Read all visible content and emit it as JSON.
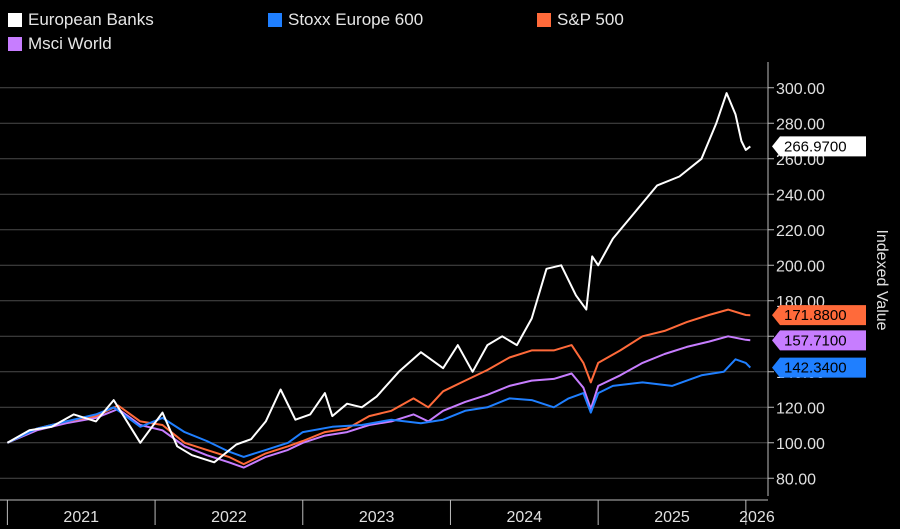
{
  "chart_data": {
    "type": "line",
    "ylabel": "Indexed Value",
    "ylim": [
      70,
      310
    ],
    "yticks": [
      "80.00",
      "100.00",
      "120.00",
      "140.00",
      "160.00",
      "180.00",
      "200.00",
      "220.00",
      "240.00",
      "260.00",
      "280.00",
      "300.00"
    ],
    "xlim": [
      2020.95,
      2026.15
    ],
    "xticks": [
      "2021",
      "2022",
      "2023",
      "2024",
      "2025",
      "2026"
    ],
    "series": [
      {
        "name": "European Banks",
        "color": "#ffffff",
        "last_label": "266.9700",
        "x": [
          2021.0,
          2021.15,
          2021.3,
          2021.45,
          2021.6,
          2021.72,
          2021.9,
          2022.05,
          2022.15,
          2022.25,
          2022.4,
          2022.55,
          2022.65,
          2022.75,
          2022.85,
          2022.95,
          2023.05,
          2023.15,
          2023.2,
          2023.3,
          2023.4,
          2023.5,
          2023.65,
          2023.8,
          2023.95,
          2024.05,
          2024.15,
          2024.25,
          2024.35,
          2024.45,
          2024.55,
          2024.65,
          2024.75,
          2024.85,
          2024.92,
          2024.96,
          2025.0,
          2025.1,
          2025.25,
          2025.4,
          2025.55,
          2025.7,
          2025.8,
          2025.87,
          2025.93,
          2025.97,
          2026.0,
          2026.03
        ],
        "values": [
          100,
          107,
          109,
          116,
          112,
          124,
          100,
          117,
          98,
          93,
          89,
          99,
          102,
          112,
          130,
          113,
          116,
          128,
          115,
          122,
          120,
          126,
          140,
          151,
          142,
          155,
          140,
          155,
          160,
          155,
          170,
          198,
          200,
          183,
          175,
          205,
          200,
          215,
          230,
          245,
          250,
          260,
          280,
          297,
          285,
          270,
          265,
          266.97
        ]
      },
      {
        "name": "Stoxx Europe 600",
        "color": "#1f7fff",
        "last_label": "142.3400",
        "x": [
          2021.0,
          2021.2,
          2021.4,
          2021.6,
          2021.72,
          2021.9,
          2022.05,
          2022.2,
          2022.35,
          2022.5,
          2022.6,
          2022.75,
          2022.9,
          2023.0,
          2023.2,
          2023.4,
          2023.6,
          2023.8,
          2023.95,
          2024.1,
          2024.25,
          2024.4,
          2024.55,
          2024.7,
          2024.8,
          2024.9,
          2024.95,
          2025.0,
          2025.1,
          2025.3,
          2025.5,
          2025.7,
          2025.85,
          2025.93,
          2026.0,
          2026.03
        ],
        "values": [
          100,
          108,
          112,
          116,
          120,
          109,
          114,
          106,
          101,
          95,
          92,
          96,
          100,
          106,
          109,
          110,
          113,
          111,
          113,
          118,
          120,
          125,
          124,
          120,
          125,
          128,
          117,
          128,
          132,
          134,
          132,
          138,
          140,
          147,
          145,
          142.34
        ]
      },
      {
        "name": "S&P 500",
        "color": "#ff6a3a",
        "last_label": "171.8800",
        "x": [
          2021.0,
          2021.2,
          2021.4,
          2021.6,
          2021.75,
          2021.9,
          2022.05,
          2022.2,
          2022.35,
          2022.5,
          2022.6,
          2022.75,
          2022.9,
          2023.0,
          2023.15,
          2023.3,
          2023.45,
          2023.6,
          2023.75,
          2023.85,
          2023.95,
          2024.1,
          2024.25,
          2024.4,
          2024.55,
          2024.7,
          2024.82,
          2024.9,
          2024.95,
          2025.0,
          2025.15,
          2025.3,
          2025.45,
          2025.6,
          2025.75,
          2025.88,
          2026.0,
          2026.03
        ],
        "values": [
          100,
          108,
          112,
          115,
          121,
          112,
          110,
          100,
          96,
          92,
          88,
          94,
          98,
          101,
          106,
          108,
          115,
          118,
          125,
          120,
          129,
          135,
          141,
          148,
          152,
          152,
          155,
          145,
          134,
          145,
          152,
          160,
          163,
          168,
          172,
          175,
          172,
          171.88
        ]
      },
      {
        "name": "Msci World",
        "color": "#c77dff",
        "last_label": "157.7100",
        "x": [
          2021.0,
          2021.2,
          2021.4,
          2021.6,
          2021.75,
          2021.9,
          2022.05,
          2022.2,
          2022.35,
          2022.5,
          2022.6,
          2022.75,
          2022.9,
          2023.0,
          2023.15,
          2023.3,
          2023.45,
          2023.6,
          2023.75,
          2023.85,
          2023.95,
          2024.1,
          2024.25,
          2024.4,
          2024.55,
          2024.7,
          2024.82,
          2024.9,
          2024.95,
          2025.0,
          2025.15,
          2025.3,
          2025.45,
          2025.6,
          2025.75,
          2025.88,
          2026.0,
          2026.03
        ],
        "values": [
          100,
          107,
          111,
          114,
          119,
          110,
          107,
          98,
          93,
          89,
          86,
          92,
          96,
          100,
          104,
          106,
          110,
          112,
          116,
          112,
          118,
          123,
          127,
          132,
          135,
          136,
          139,
          131,
          119,
          132,
          138,
          145,
          150,
          154,
          157,
          160,
          158,
          157.71
        ]
      }
    ]
  }
}
